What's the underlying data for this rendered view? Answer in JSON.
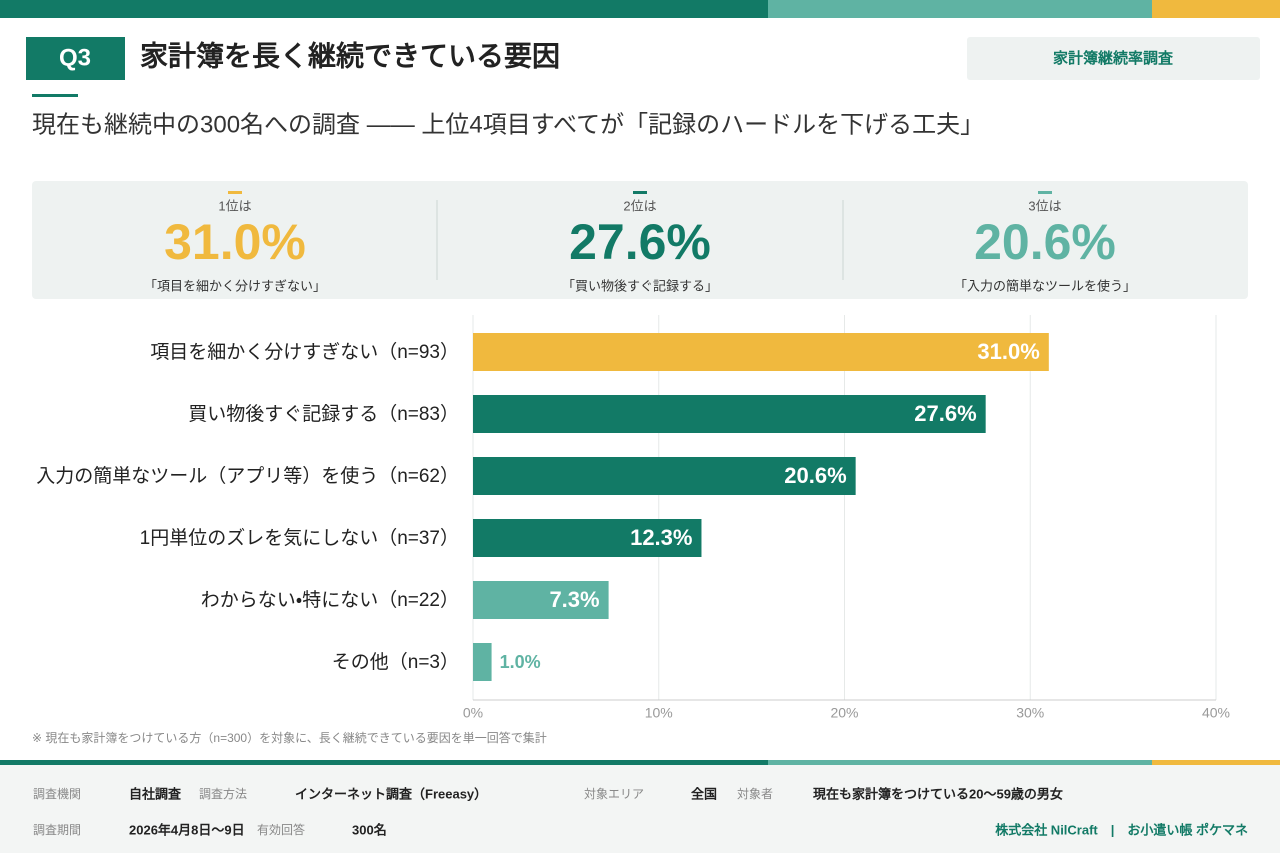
{
  "header": {
    "badge": "Q3",
    "title": "家計簿を長く継続できている要因",
    "tag": "家計簿継続率調査",
    "subtitle": "現在も継続中の300名への調査 —— 上位4項目すべてが「記録のハードルを下げる工夫」"
  },
  "highlights": [
    {
      "rank": "1位は",
      "value": "31.0%",
      "item": "「項目を細かく分けすぎない」",
      "color": "#f0b93e"
    },
    {
      "rank": "2位は",
      "value": "27.6%",
      "item": "「買い物後すぐ記録する」",
      "color": "#127a66"
    },
    {
      "rank": "3位は",
      "value": "20.6%",
      "item": "「入力の簡単なツールを使う」",
      "color": "#5fb3a3"
    }
  ],
  "chart_data": {
    "type": "bar",
    "orientation": "horizontal",
    "categories": [
      "項目を細かく分けすぎない（n=93）",
      "買い物後すぐ記録する（n=83）",
      "入力の簡単なツール（アプリ等）を使う（n=62）",
      "1円単位のズレを気にしない（n=37）",
      "わからない・特にない（n=22）",
      "その他（n=3）"
    ],
    "values": [
      31.0,
      27.6,
      20.6,
      12.3,
      7.3,
      1.0
    ],
    "value_labels": [
      "31.0%",
      "27.6%",
      "20.6%",
      "12.3%",
      "7.3%",
      "1.0%"
    ],
    "colors": [
      "#f0b93e",
      "#127a66",
      "#127a66",
      "#127a66",
      "#5fb3a3",
      "#5fb3a3"
    ],
    "xlim": [
      0,
      40
    ],
    "xticks": [
      {
        "value": 0,
        "label": "0%"
      },
      {
        "value": 10,
        "label": "10%"
      },
      {
        "value": 20,
        "label": "20%"
      },
      {
        "value": 30,
        "label": "30%"
      },
      {
        "value": 40,
        "label": "40%"
      }
    ],
    "grid": true
  },
  "note": "※ 現在も家計簿をつけている方（n=300）を対象に、長く継続できている要因を単一回答で集計",
  "footer": {
    "fields": [
      {
        "label": "調査機関",
        "value": "自社調査"
      },
      {
        "label": "調査方法",
        "value": "インターネット調査（Freeasy）"
      },
      {
        "label": "対象エリア",
        "value": "全国"
      },
      {
        "label": "対象者",
        "value": "現在も家計簿をつけている20〜59歳の男女"
      },
      {
        "label": "調査期間",
        "value": "2026年4月8日〜9日"
      },
      {
        "label": "有効回答",
        "value": "300名"
      }
    ],
    "credit": "株式会社 NilCraft　|　お小遣い帳 ポケマネ"
  }
}
